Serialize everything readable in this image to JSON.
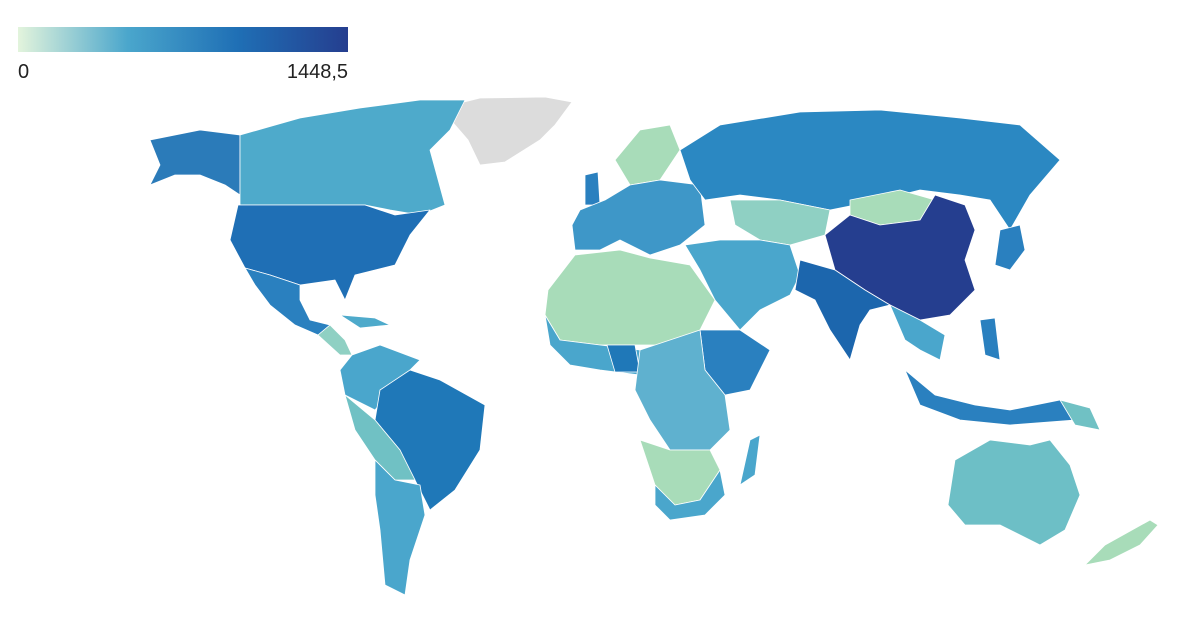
{
  "legend": {
    "min": 0,
    "max": {
      "value": 1448.5,
      "label": "1448,5"
    },
    "colors": [
      "#e3f4dc",
      "#4aa6cc",
      "#1f6fb5",
      "#253e8f"
    ]
  }
}
